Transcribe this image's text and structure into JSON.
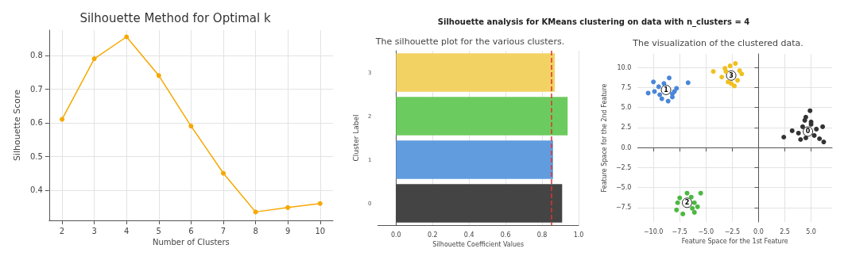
{
  "chart_data": [
    {
      "type": "line",
      "title": "Silhouette Method for Optimal k",
      "xlabel": "Number of Clusters",
      "ylabel": "Silhouette Score",
      "x": [
        2,
        3,
        4,
        5,
        6,
        7,
        8,
        9,
        10
      ],
      "series": [
        {
          "color": "#f5a800",
          "values": [
            0.61,
            0.79,
            0.855,
            0.74,
            0.59,
            0.45,
            0.335,
            0.348,
            0.36
          ]
        }
      ],
      "xlim": [
        1.6,
        10.4
      ],
      "xticks": [
        2,
        3,
        4,
        5,
        6,
        7,
        8,
        9,
        10
      ],
      "ylim": [
        0.31,
        0.875
      ],
      "yticks": [
        0.4,
        0.5,
        0.6,
        0.7,
        0.8
      ],
      "grid": true,
      "marker": "circle",
      "line_style": "solid"
    },
    {
      "type": "bar",
      "orientation": "horizontal",
      "title": "The silhouette plot for the various clusters.",
      "xlabel": "Silhouette Coefficient Values",
      "ylabel": "Cluster Label",
      "annotations": [
        "Silhouette analysis for KMeans clustering on data with n_clusters = 4"
      ],
      "categories": [
        "3",
        "2",
        "1",
        "0"
      ],
      "values": [
        0.87,
        0.94,
        0.86,
        0.91
      ],
      "colors": [
        "#f3d264",
        "#6ccb5f",
        "#619cde",
        "#444444"
      ],
      "xlim": [
        -0.1,
        1.0
      ],
      "xticks": [
        {
          "value": 0,
          "label": "0.0"
        },
        0.2,
        0.4,
        0.6,
        0.8,
        {
          "value": 1,
          "label": "1.0"
        }
      ],
      "ref_lines": [
        {
          "axis": "x",
          "value": 0.855,
          "color": "#e0322d",
          "line_style": "dashed"
        }
      ],
      "grid": "x"
    },
    {
      "type": "scatter",
      "title": "The visualization of the clustered data.",
      "xlabel": "Feature Space for the 1st Feature",
      "ylabel": "Feature Space for the 2nd Feature",
      "series": [
        {
          "color": "#333333",
          "x": [
            4.2,
            5.3,
            3.8,
            5.0,
            4.5,
            5.8,
            6.1,
            2.4,
            3.2,
            4.9,
            5.5,
            4.0,
            4.5,
            5.0,
            6.2,
            4.4
          ],
          "values": [
            2.6,
            1.5,
            1.8,
            3.2,
            3.8,
            1.1,
            2.6,
            1.3,
            2.1,
            4.6,
            2.3,
            1.0,
            1.2,
            2.9,
            0.7,
            3.4
          ]
        },
        {
          "color": "#4a86d8",
          "x": [
            -9.5,
            -8.2,
            -10.0,
            -9.2,
            -8.5,
            -7.8,
            -10.5,
            -8.6,
            -9.0,
            -6.7,
            -9.9,
            -8.2,
            -9.4,
            -8.0
          ],
          "values": [
            7.6,
            6.7,
            8.2,
            6.1,
            8.7,
            7.4,
            6.8,
            5.8,
            8.0,
            8.1,
            7.0,
            6.3,
            6.6,
            7.0
          ]
        },
        {
          "color": "#4cb840",
          "x": [
            -7.5,
            -6.3,
            -6.1,
            -7.8,
            -6.8,
            -5.5,
            -7.2,
            -6.1,
            -7.7,
            -6.4,
            -5.8
          ],
          "values": [
            -6.3,
            -7.6,
            -6.9,
            -7.8,
            -5.7,
            -5.7,
            -8.3,
            -8.1,
            -6.9,
            -6.2,
            -7.4
          ]
        },
        {
          "color": "#f0c020",
          "x": [
            -3.1,
            -2.0,
            -3.5,
            -1.8,
            -2.7,
            -2.3,
            -4.3,
            -1.6,
            -2.9,
            -2.2,
            -3.2,
            -2.6
          ],
          "values": [
            9.5,
            8.4,
            8.8,
            9.6,
            10.2,
            7.7,
            9.5,
            9.2,
            8.2,
            10.5,
            9.9,
            8.0
          ]
        }
      ],
      "annotations": [
        {
          "text": "0",
          "x": 4.7,
          "y": 2.0
        },
        {
          "text": "1",
          "x": -8.8,
          "y": 7.2
        },
        {
          "text": "2",
          "x": -6.8,
          "y": -6.9
        },
        {
          "text": "3",
          "x": -2.6,
          "y": 9.0
        }
      ],
      "xlim": [
        -11.5,
        7.0
      ],
      "xticks": [
        {
          "value": -10,
          "label": "−10.0"
        },
        {
          "value": -7.5,
          "label": "−7.5"
        },
        {
          "value": -5,
          "label": "−5.0"
        },
        {
          "value": -2.5,
          "label": "−2.5"
        },
        {
          "value": 0,
          "label": "0.0"
        },
        2.5,
        {
          "value": 5,
          "label": "5.0"
        }
      ],
      "ylim": [
        -9.3,
        11.7
      ],
      "yticks": [
        {
          "value": -7.5,
          "label": "−7.5"
        },
        {
          "value": -5,
          "label": "−5.0"
        },
        {
          "value": -2.5,
          "label": "−2.5"
        },
        {
          "value": 0,
          "label": "0.0"
        },
        2.5,
        {
          "value": 5,
          "label": "5.0"
        },
        7.5,
        {
          "value": 10,
          "label": "10.0"
        }
      ],
      "grid": true,
      "marker": "circle"
    }
  ]
}
